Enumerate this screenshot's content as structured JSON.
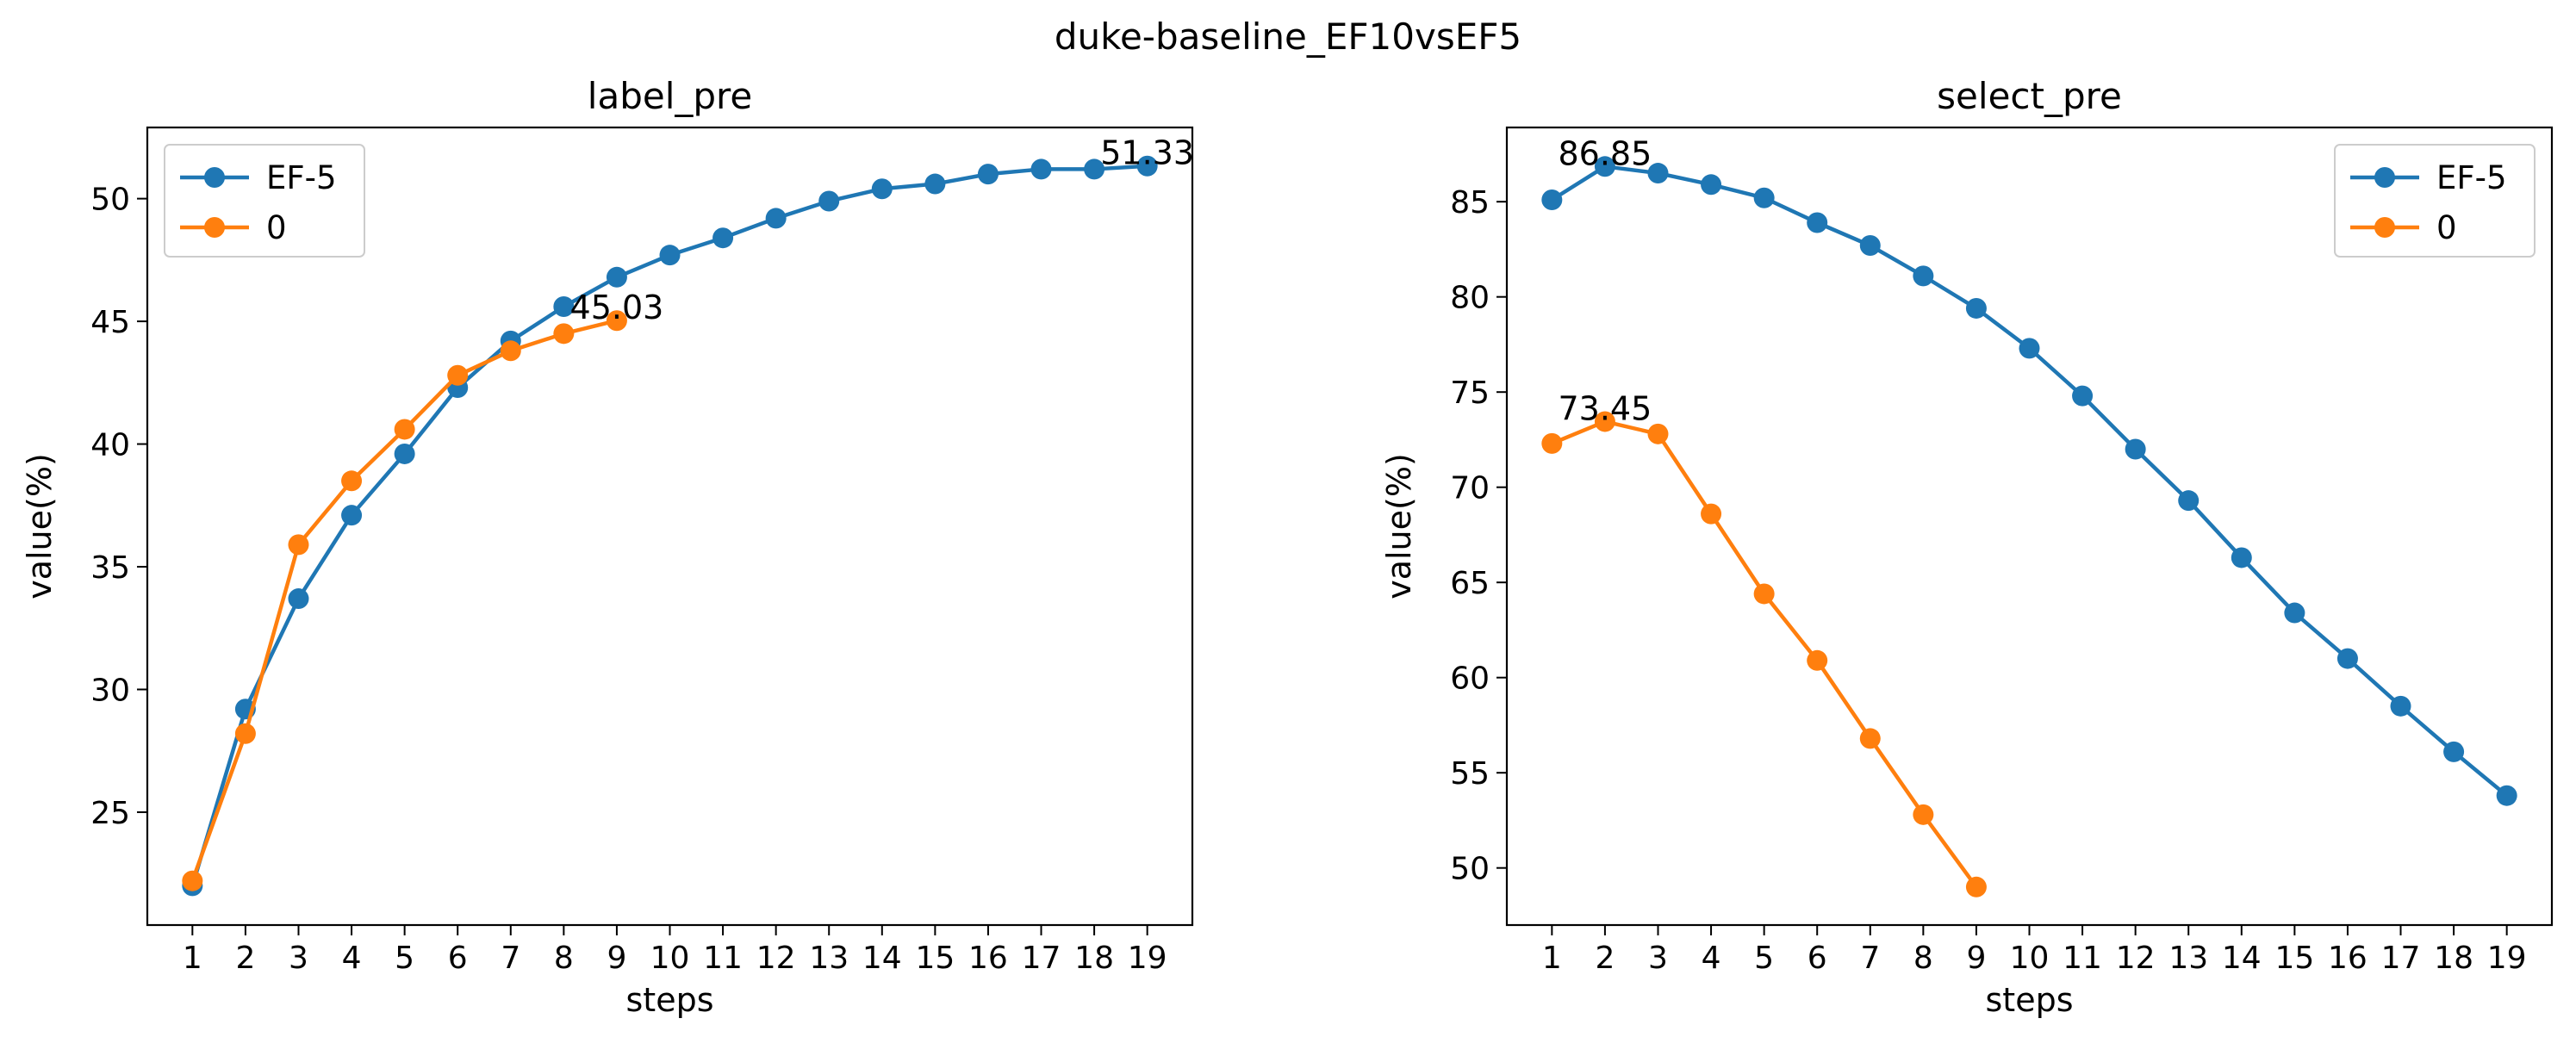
{
  "figure": {
    "suptitle": "duke-baseline_EF10vsEF5"
  },
  "colors": {
    "series0": "#1f77b4",
    "series1": "#ff7f0e"
  },
  "chart_data": [
    {
      "type": "line",
      "title": "label_pre",
      "xlabel": "steps",
      "ylabel": "value(%)",
      "x_ticks": [
        "1",
        "2",
        "3",
        "4",
        "5",
        "6",
        "7",
        "8",
        "9",
        "10",
        "11",
        "12",
        "13",
        "14",
        "15",
        "16",
        "17",
        "18",
        "19"
      ],
      "y_ticks": [
        25,
        30,
        35,
        40,
        45,
        50
      ],
      "xlim": [
        0.15,
        19.85
      ],
      "ylim": [
        20.4,
        52.9
      ],
      "legend_position": "upper left",
      "grid": false,
      "series": [
        {
          "name": "EF-5",
          "x": [
            1,
            2,
            3,
            4,
            5,
            6,
            7,
            8,
            9,
            10,
            11,
            12,
            13,
            14,
            15,
            16,
            17,
            18,
            19
          ],
          "values": [
            22.0,
            29.2,
            33.7,
            37.1,
            39.6,
            42.3,
            44.2,
            45.6,
            46.8,
            47.7,
            48.4,
            49.2,
            49.9,
            50.4,
            50.6,
            51.0,
            51.2,
            51.2,
            51.33
          ]
        },
        {
          "name": "0",
          "x": [
            1,
            2,
            3,
            4,
            5,
            6,
            7,
            8,
            9
          ],
          "values": [
            22.2,
            28.2,
            35.9,
            38.5,
            40.6,
            42.8,
            43.8,
            44.5,
            45.03
          ]
        }
      ],
      "annotations": [
        {
          "text": "51.33",
          "x": 19,
          "y": 51.33
        },
        {
          "text": "45.03",
          "x": 9,
          "y": 45.03
        }
      ]
    },
    {
      "type": "line",
      "title": "select_pre",
      "xlabel": "steps",
      "ylabel": "value(%)",
      "x_ticks": [
        "1",
        "2",
        "3",
        "4",
        "5",
        "6",
        "7",
        "8",
        "9",
        "10",
        "11",
        "12",
        "13",
        "14",
        "15",
        "16",
        "17",
        "18",
        "19"
      ],
      "y_ticks": [
        50,
        55,
        60,
        65,
        70,
        75,
        80,
        85
      ],
      "xlim": [
        0.15,
        19.85
      ],
      "ylim": [
        47.0,
        88.9
      ],
      "legend_position": "upper right",
      "grid": false,
      "series": [
        {
          "name": "EF-5",
          "x": [
            1,
            2,
            3,
            4,
            5,
            6,
            7,
            8,
            9,
            10,
            11,
            12,
            13,
            14,
            15,
            16,
            17,
            18,
            19
          ],
          "values": [
            85.1,
            86.85,
            86.5,
            85.9,
            85.2,
            83.9,
            82.7,
            81.1,
            79.4,
            77.3,
            74.8,
            72.0,
            69.3,
            66.3,
            63.4,
            61.0,
            58.5,
            56.1,
            53.8
          ]
        },
        {
          "name": "0",
          "x": [
            1,
            2,
            3,
            4,
            5,
            6,
            7,
            8,
            9
          ],
          "values": [
            72.3,
            73.45,
            72.8,
            68.6,
            64.4,
            60.9,
            56.8,
            52.8,
            49.0
          ]
        }
      ],
      "annotations": [
        {
          "text": "86.85",
          "x": 2,
          "y": 86.85
        },
        {
          "text": "73.45",
          "x": 2,
          "y": 73.45
        }
      ]
    }
  ]
}
